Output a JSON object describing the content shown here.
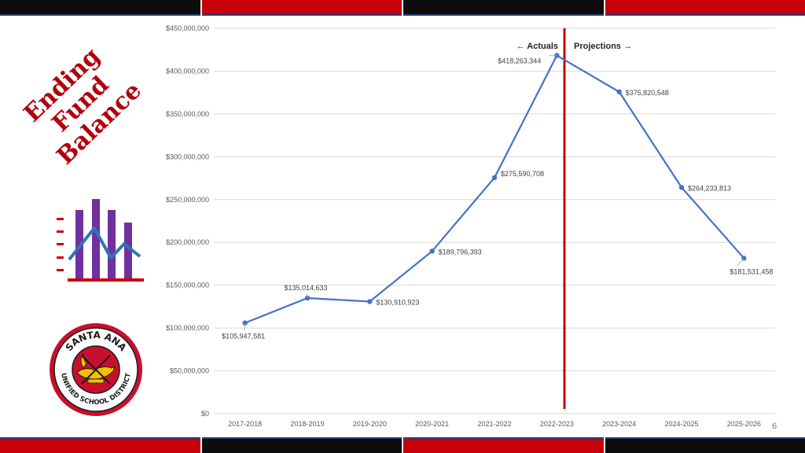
{
  "slide": {
    "title_line1": "Ending Fund",
    "title_line2": "Balance",
    "page_number": "6",
    "seal": {
      "top_text": "SANTA ANA",
      "bottom_text": "UNIFIED SCHOOL DISTRICT"
    },
    "colors": {
      "red": "#c8000a",
      "dark": "#0d0d0d",
      "navy": "#2a3a7a",
      "icon_bar": "#7030a0",
      "icon_line": "#2e75b6"
    },
    "icons": [
      "bar-chart-icon",
      "district-seal"
    ]
  },
  "chart_data": {
    "type": "line",
    "categories": [
      "2017-2018",
      "2018-2019",
      "2019-2020",
      "2020-2021",
      "2021-2022",
      "2022-2023",
      "2023-2024",
      "2024-2025",
      "2025-2026"
    ],
    "values": [
      105947581,
      135014633,
      130910923,
      189796393,
      275590708,
      418263344,
      375820548,
      264233813,
      181531458
    ],
    "value_labels": [
      "$105,947,581",
      "$135,014,633",
      "$130,910,923",
      "$189,796,393",
      "$275,590,708",
      "$418,263,344",
      "$375,820,548",
      "$264,233,813",
      "$181,531,458"
    ],
    "y_ticks": [
      0,
      50000000,
      100000000,
      150000000,
      200000000,
      250000000,
      300000000,
      350000000,
      400000000,
      450000000
    ],
    "y_tick_labels": [
      "$0",
      "$50,000,000",
      "$100,000,000",
      "$150,000,000",
      "$200,000,000",
      "$250,000,000",
      "$300,000,000",
      "$350,000,000",
      "$400,000,000",
      "$450,000,000"
    ],
    "ylim": [
      0,
      450000000
    ],
    "grid": true,
    "line_color": "#4472c4",
    "divider": {
      "between": [
        "2022-2023",
        "2023-2024"
      ],
      "color": "#c8000a",
      "left_label": "Actuals",
      "right_label": "Projections"
    }
  }
}
